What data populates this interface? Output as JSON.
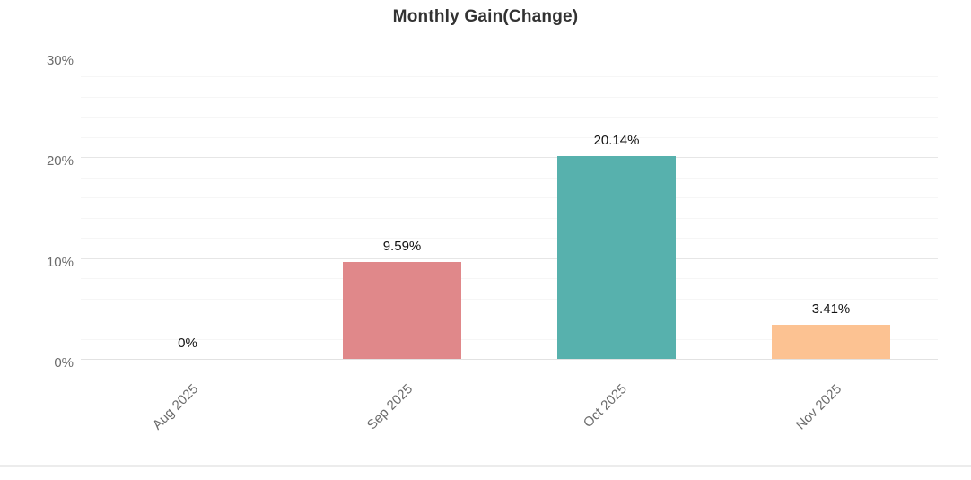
{
  "chart_data": {
    "type": "bar",
    "title": "Monthly Gain(Change)",
    "categories": [
      "Aug 2025",
      "Sep 2025",
      "Oct 2025",
      "Nov 2025"
    ],
    "values": [
      0,
      9.59,
      20.14,
      3.41
    ],
    "value_labels": [
      "0%",
      "9.59%",
      "20.14%",
      "3.41%"
    ],
    "bar_colors": [
      null,
      "#E0888A",
      "#57B1AD",
      "#FCC292"
    ],
    "xlabel": "",
    "ylabel": "",
    "y_ticks": [
      {
        "label": "0%",
        "value": 0
      },
      {
        "label": "10%",
        "value": 10
      },
      {
        "label": "20%",
        "value": 20
      },
      {
        "label": "30%",
        "value": 30
      }
    ],
    "ylim": [
      0,
      30
    ],
    "y_major_step": 10,
    "y_minor_step": 2,
    "grid": "on",
    "legend": "none",
    "x_label_rotation": -45
  },
  "styles": {
    "background": "#ffffff",
    "title_color": "#333333",
    "axis_label_color": "#6b6b6b",
    "value_label_color": "#111111",
    "major_grid_color": "#e6e6e6",
    "minor_grid_color": "#f6f6f6",
    "baseline_color": "#e2e2e2",
    "bottom_divider_color": "#ececec"
  }
}
